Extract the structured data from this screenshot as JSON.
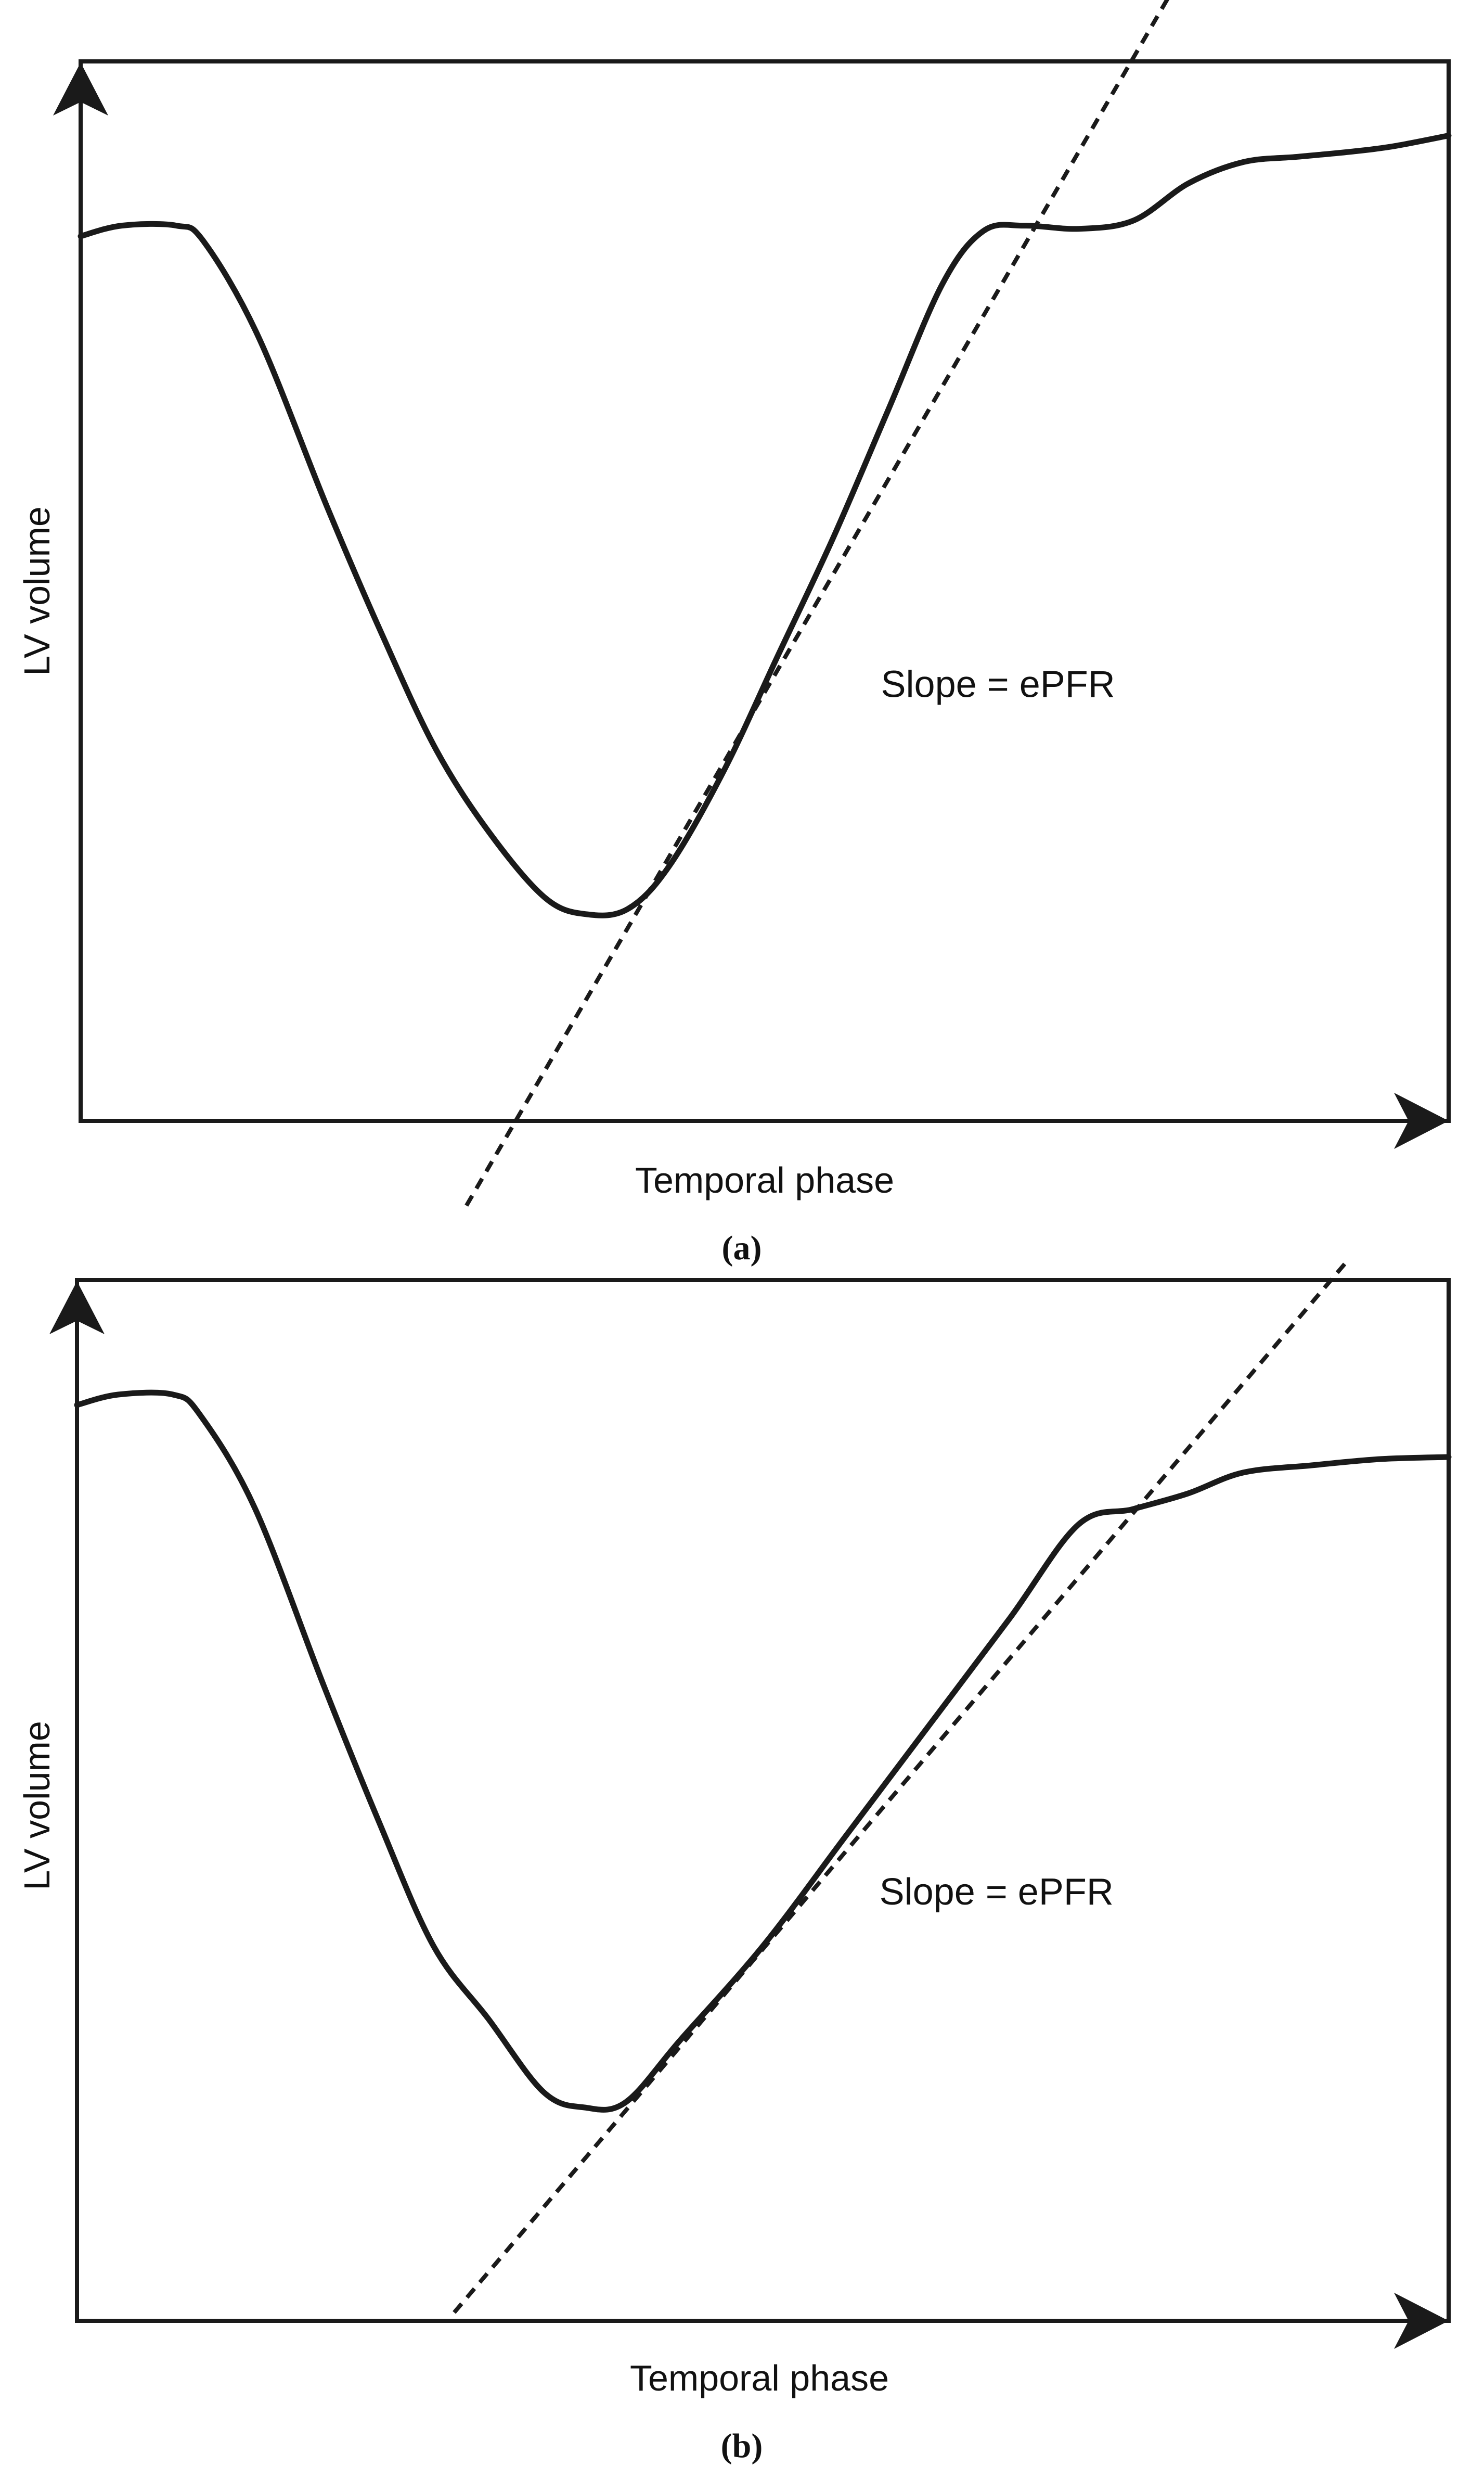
{
  "colors": {
    "line": "#1a1a1a",
    "background": "#ffffff"
  },
  "chart_data": [
    {
      "panel": "(a)",
      "type": "line",
      "title": "",
      "xlabel": "Temporal phase",
      "ylabel": "LV volume",
      "xlim": [
        0,
        100
      ],
      "ylim": [
        0,
        100
      ],
      "grid": false,
      "axis_ticks": false,
      "annotation": "Slope = ePFR",
      "annotation_pos": [
        58.5,
        40
      ],
      "series": [
        {
          "x": [
            0,
            3,
            7,
            9,
            13,
            18,
            22,
            26,
            30,
            34,
            37,
            40,
            43,
            47,
            51,
            55,
            59,
            63,
            66,
            69,
            73,
            77,
            81,
            85,
            89,
            93,
            96,
            100
          ],
          "y": [
            83.5,
            84.5,
            84.5,
            83,
            74,
            58,
            46,
            35,
            27,
            21,
            19.5,
            20,
            24,
            33,
            44,
            55,
            67,
            79,
            84,
            84.5,
            84.2,
            85,
            88.5,
            90.5,
            91,
            91.5,
            92,
            93
          ],
          "style": "solid"
        },
        {
          "x": [
            28.2,
            79.5
          ],
          "y": [
            -8,
            106
          ],
          "style": "dashed",
          "role": "tangent"
        }
      ]
    },
    {
      "panel": "(b)",
      "type": "line",
      "title": "",
      "xlabel": "Temporal phase",
      "ylabel": "LV volume",
      "xlim": [
        0,
        100
      ],
      "ylim": [
        0,
        100
      ],
      "grid": false,
      "axis_ticks": false,
      "annotation": "Slope = ePFR",
      "annotation_pos": [
        58.5,
        40
      ],
      "series": [
        {
          "x": [
            0,
            3,
            7,
            9,
            13,
            18,
            22,
            26,
            30,
            34,
            37,
            40,
            44,
            50,
            56,
            62,
            68,
            73,
            77,
            81,
            85,
            90,
            95,
            100
          ],
          "y": [
            88,
            89,
            89,
            87,
            78,
            61,
            48,
            36,
            29,
            22,
            20.5,
            21,
            27,
            36,
            46.5,
            57,
            67.5,
            76.5,
            78,
            79.5,
            81.5,
            82.2,
            82.8,
            83
          ],
          "style": "solid"
        },
        {
          "x": [
            27.5,
            94
          ],
          "y": [
            0.8,
            104
          ],
          "style": "dashed",
          "role": "tangent"
        }
      ]
    }
  ]
}
